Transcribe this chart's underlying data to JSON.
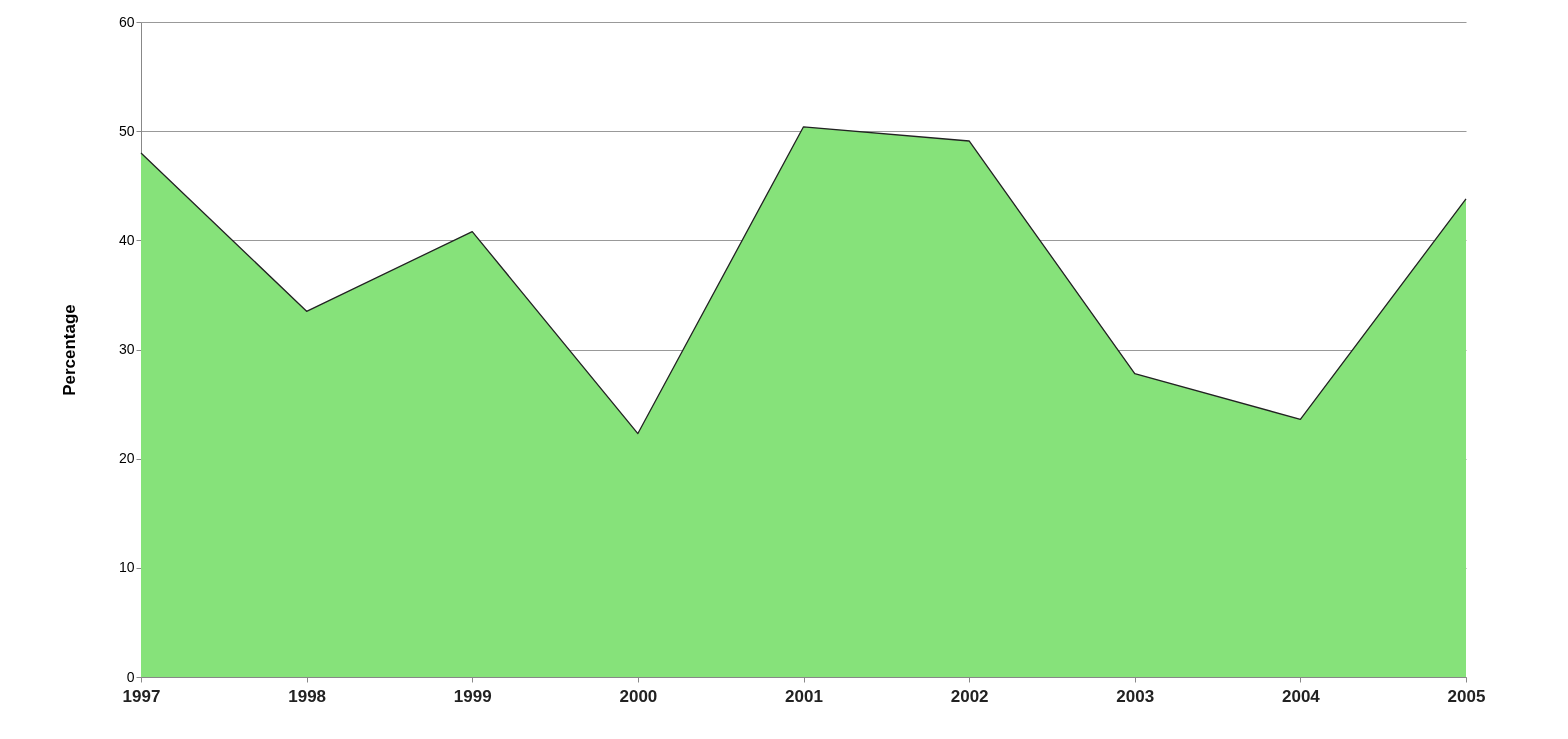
{
  "chart_data": {
    "type": "area",
    "ylabel": "Percentage",
    "categories": [
      "1997",
      "1998",
      "1999",
      "2000",
      "2001",
      "2002",
      "2003",
      "2004",
      "2005"
    ],
    "series": [
      {
        "color": "#86e27a",
        "values": [
          48,
          33.5,
          40.8,
          22.3,
          50.4,
          49.1,
          27.8,
          23.6,
          43.8
        ]
      }
    ],
    "ylim": [
      0,
      60
    ],
    "yticks": [
      0,
      10,
      20,
      30,
      40,
      50,
      60
    ],
    "grid": "y"
  }
}
